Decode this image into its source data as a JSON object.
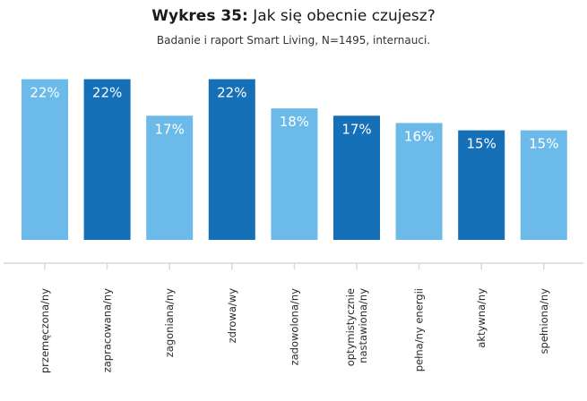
{
  "chart_data": {
    "type": "bar",
    "title_prefix": "Wykres 35:",
    "title": "Jak się obecnie czujesz?",
    "subtitle": "Badanie i raport Smart Living, N=1495, internauci.",
    "categories": [
      "przemęczona/ny",
      "zapracowana/ny",
      "zagoniana/ny",
      "zdrowa/wy",
      "zadowolona/ny",
      "optymistycznie nastawiona/ny",
      "pełna/ny energii",
      "aktywna/ny",
      "spełniona/ny"
    ],
    "category_lines": [
      [
        "przemęczona/ny"
      ],
      [
        "zapracowana/ny"
      ],
      [
        "zagoniana/ny"
      ],
      [
        "zdrowa/wy"
      ],
      [
        "zadowolona/ny"
      ],
      [
        "optymistycznie",
        "nastawiona/ny"
      ],
      [
        "pełna/ny energii"
      ],
      [
        "aktywna/ny"
      ],
      [
        "spełniona/ny"
      ]
    ],
    "values": [
      22,
      22,
      17,
      22,
      18,
      17,
      16,
      15,
      15
    ],
    "value_labels": [
      "22%",
      "22%",
      "17%",
      "22%",
      "18%",
      "17%",
      "16%",
      "15%",
      "15%"
    ],
    "bar_colors": [
      "#6cbaea",
      "#1670b8",
      "#6cbaea",
      "#1670b8",
      "#6cbaea",
      "#1670b8",
      "#6cbaea",
      "#1670b8",
      "#6cbaea"
    ],
    "label_color": "#ffffff",
    "axis_color": "#d9d9d9",
    "xlabel": "",
    "ylabel": "",
    "ylim": [
      0,
      22
    ],
    "unit": "%"
  }
}
